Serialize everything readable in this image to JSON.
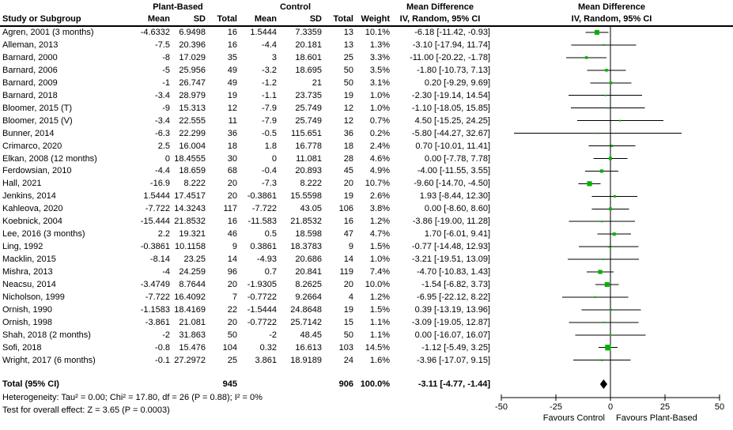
{
  "chart_data": {
    "type": "scatter",
    "subtype": "forest-plot-meta-analysis",
    "header": {
      "study_col": "Study or Subgroup",
      "group1_label": "Plant-Based",
      "group2_label": "Control",
      "columns": [
        "Mean",
        "SD",
        "Total",
        "Mean",
        "SD",
        "Total",
        "Weight"
      ],
      "effect_title": "Mean Difference",
      "effect_subtitle": "IV, Random, 95% CI"
    },
    "studies": [
      {
        "name": "Agren, 2001 (3 months)",
        "mean1": "-4.6332",
        "sd1": "6.9498",
        "n1": "16",
        "mean2": "1.5444",
        "sd2": "7.3359",
        "n2": "13",
        "weight": "10.1%",
        "ci_text": "-6.18 [-11.42, -0.93]",
        "md": -6.18,
        "lo": -11.42,
        "hi": -0.93,
        "w": 10.1
      },
      {
        "name": "Alleman, 2013",
        "mean1": "-7.5",
        "sd1": "20.396",
        "n1": "16",
        "mean2": "-4.4",
        "sd2": "20.181",
        "n2": "13",
        "weight": "1.3%",
        "ci_text": "-3.10 [-17.94, 11.74]",
        "md": -3.1,
        "lo": -17.94,
        "hi": 11.74,
        "w": 1.3
      },
      {
        "name": "Barnard, 2000",
        "mean1": "-8",
        "sd1": "17.029",
        "n1": "35",
        "mean2": "3",
        "sd2": "18.601",
        "n2": "25",
        "weight": "3.3%",
        "ci_text": "-11.00 [-20.22, -1.78]",
        "md": -11.0,
        "lo": -20.22,
        "hi": -1.78,
        "w": 3.3
      },
      {
        "name": "Barnard, 2006",
        "mean1": "-5",
        "sd1": "25.956",
        "n1": "49",
        "mean2": "-3.2",
        "sd2": "18.695",
        "n2": "50",
        "weight": "3.5%",
        "ci_text": "-1.80 [-10.73, 7.13]",
        "md": -1.8,
        "lo": -10.73,
        "hi": 7.13,
        "w": 3.5
      },
      {
        "name": "Barnard, 2009",
        "mean1": "-1",
        "sd1": "26.747",
        "n1": "49",
        "mean2": "-1.2",
        "sd2": "21",
        "n2": "50",
        "weight": "3.1%",
        "ci_text": "0.20 [-9.29, 9.69]",
        "md": 0.2,
        "lo": -9.29,
        "hi": 9.69,
        "w": 3.1
      },
      {
        "name": "Barnard, 2018",
        "mean1": "-3.4",
        "sd1": "28.979",
        "n1": "19",
        "mean2": "-1.1",
        "sd2": "23.735",
        "n2": "19",
        "weight": "1.0%",
        "ci_text": "-2.30 [-19.14, 14.54]",
        "md": -2.3,
        "lo": -19.14,
        "hi": 14.54,
        "w": 1.0
      },
      {
        "name": "Bloomer, 2015 (T)",
        "mean1": "-9",
        "sd1": "15.313",
        "n1": "12",
        "mean2": "-7.9",
        "sd2": "25.749",
        "n2": "12",
        "weight": "1.0%",
        "ci_text": "-1.10 [-18.05, 15.85]",
        "md": -1.1,
        "lo": -18.05,
        "hi": 15.85,
        "w": 1.0
      },
      {
        "name": "Bloomer, 2015 (V)",
        "mean1": "-3.4",
        "sd1": "22.555",
        "n1": "11",
        "mean2": "-7.9",
        "sd2": "25.749",
        "n2": "12",
        "weight": "0.7%",
        "ci_text": "4.50 [-15.25, 24.25]",
        "md": 4.5,
        "lo": -15.25,
        "hi": 24.25,
        "w": 0.7
      },
      {
        "name": "Bunner, 2014",
        "mean1": "-6.3",
        "sd1": "22.299",
        "n1": "36",
        "mean2": "-0.5",
        "sd2": "115.651",
        "n2": "36",
        "weight": "0.2%",
        "ci_text": "-5.80 [-44.27, 32.67]",
        "md": -5.8,
        "lo": -44.27,
        "hi": 32.67,
        "w": 0.2
      },
      {
        "name": "Crimarco, 2020",
        "mean1": "2.5",
        "sd1": "16.004",
        "n1": "18",
        "mean2": "1.8",
        "sd2": "16.778",
        "n2": "18",
        "weight": "2.4%",
        "ci_text": "0.70 [-10.01, 11.41]",
        "md": 0.7,
        "lo": -10.01,
        "hi": 11.41,
        "w": 2.4
      },
      {
        "name": "Elkan, 2008 (12 months)",
        "mean1": "0",
        "sd1": "18.4555",
        "n1": "30",
        "mean2": "0",
        "sd2": "11.081",
        "n2": "28",
        "weight": "4.6%",
        "ci_text": "0.00 [-7.78, 7.78]",
        "md": 0.0,
        "lo": -7.78,
        "hi": 7.78,
        "w": 4.6
      },
      {
        "name": "Ferdowsian, 2010",
        "mean1": "-4.4",
        "sd1": "18.659",
        "n1": "68",
        "mean2": "-0.4",
        "sd2": "20.893",
        "n2": "45",
        "weight": "4.9%",
        "ci_text": "-4.00 [-11.55, 3.55]",
        "md": -4.0,
        "lo": -11.55,
        "hi": 3.55,
        "w": 4.9
      },
      {
        "name": "Hall, 2021",
        "mean1": "-16.9",
        "sd1": "8.222",
        "n1": "20",
        "mean2": "-7.3",
        "sd2": "8.222",
        "n2": "20",
        "weight": "10.7%",
        "ci_text": "-9.60 [-14.70, -4.50]",
        "md": -9.6,
        "lo": -14.7,
        "hi": -4.5,
        "w": 10.7
      },
      {
        "name": "Jenkins, 2014",
        "mean1": "1.5444",
        "sd1": "17.4517",
        "n1": "20",
        "mean2": "-0.3861",
        "sd2": "15.5598",
        "n2": "19",
        "weight": "2.6%",
        "ci_text": "1.93 [-8.44, 12.30]",
        "md": 1.93,
        "lo": -8.44,
        "hi": 12.3,
        "w": 2.6
      },
      {
        "name": "Kahleova, 2020",
        "mean1": "-7.722",
        "sd1": "14.3243",
        "n1": "117",
        "mean2": "-7.722",
        "sd2": "43.05",
        "n2": "106",
        "weight": "3.8%",
        "ci_text": "0.00 [-8.60, 8.60]",
        "md": 0.0,
        "lo": -8.6,
        "hi": 8.6,
        "w": 3.8
      },
      {
        "name": "Koebnick, 2004",
        "mean1": "-15.444",
        "sd1": "21.8532",
        "n1": "16",
        "mean2": "-11.583",
        "sd2": "21.8532",
        "n2": "16",
        "weight": "1.2%",
        "ci_text": "-3.86 [-19.00, 11.28]",
        "md": -3.86,
        "lo": -19.0,
        "hi": 11.28,
        "w": 1.2
      },
      {
        "name": "Lee, 2016 (3 months)",
        "mean1": "2.2",
        "sd1": "19.321",
        "n1": "46",
        "mean2": "0.5",
        "sd2": "18.598",
        "n2": "47",
        "weight": "4.7%",
        "ci_text": "1.70 [-6.01, 9.41]",
        "md": 1.7,
        "lo": -6.01,
        "hi": 9.41,
        "w": 4.7
      },
      {
        "name": "Ling, 1992",
        "mean1": "-0.3861",
        "sd1": "10.1158",
        "n1": "9",
        "mean2": "0.3861",
        "sd2": "18.3783",
        "n2": "9",
        "weight": "1.5%",
        "ci_text": "-0.77 [-14.48, 12.93]",
        "md": -0.77,
        "lo": -14.48,
        "hi": 12.93,
        "w": 1.5
      },
      {
        "name": "Macklin, 2015",
        "mean1": "-8.14",
        "sd1": "23.25",
        "n1": "14",
        "mean2": "-4.93",
        "sd2": "20.686",
        "n2": "14",
        "weight": "1.0%",
        "ci_text": "-3.21 [-19.51, 13.09]",
        "md": -3.21,
        "lo": -19.51,
        "hi": 13.09,
        "w": 1.0
      },
      {
        "name": "Mishra, 2013",
        "mean1": "-4",
        "sd1": "24.259",
        "n1": "96",
        "mean2": "0.7",
        "sd2": "20.841",
        "n2": "119",
        "weight": "7.4%",
        "ci_text": "-4.70 [-10.83, 1.43]",
        "md": -4.7,
        "lo": -10.83,
        "hi": 1.43,
        "w": 7.4
      },
      {
        "name": "Neacsu, 2014",
        "mean1": "-3.4749",
        "sd1": "8.7644",
        "n1": "20",
        "mean2": "-1.9305",
        "sd2": "8.2625",
        "n2": "20",
        "weight": "10.0%",
        "ci_text": "-1.54 [-6.82, 3.73]",
        "md": -1.54,
        "lo": -6.82,
        "hi": 3.73,
        "w": 10.0
      },
      {
        "name": "Nicholson, 1999",
        "mean1": "-7.722",
        "sd1": "16.4092",
        "n1": "7",
        "mean2": "-0.7722",
        "sd2": "9.2664",
        "n2": "4",
        "weight": "1.2%",
        "ci_text": "-6.95 [-22.12, 8.22]",
        "md": -6.95,
        "lo": -22.12,
        "hi": 8.22,
        "w": 1.2
      },
      {
        "name": "Ornish, 1990",
        "mean1": "-1.1583",
        "sd1": "18.4169",
        "n1": "22",
        "mean2": "-1.5444",
        "sd2": "24.8648",
        "n2": "19",
        "weight": "1.5%",
        "ci_text": "0.39 [-13.19, 13.96]",
        "md": 0.39,
        "lo": -13.19,
        "hi": 13.96,
        "w": 1.5
      },
      {
        "name": "Ornish, 1998",
        "mean1": "-3.861",
        "sd1": "21.081",
        "n1": "20",
        "mean2": "-0.7722",
        "sd2": "25.7142",
        "n2": "15",
        "weight": "1.1%",
        "ci_text": "-3.09 [-19.05, 12.87]",
        "md": -3.09,
        "lo": -19.05,
        "hi": 12.87,
        "w": 1.1
      },
      {
        "name": "Shah, 2018 (2 months)",
        "mean1": "-2",
        "sd1": "31.863",
        "n1": "50",
        "mean2": "-2",
        "sd2": "48.45",
        "n2": "50",
        "weight": "1.1%",
        "ci_text": "0.00 [-16.07, 16.07]",
        "md": 0.0,
        "lo": -16.07,
        "hi": 16.07,
        "w": 1.1
      },
      {
        "name": "Sofi, 2018",
        "mean1": "-0.8",
        "sd1": "15.476",
        "n1": "104",
        "mean2": "0.32",
        "sd2": "16.613",
        "n2": "103",
        "weight": "14.5%",
        "ci_text": "-1.12 [-5.49, 3.25]",
        "md": -1.12,
        "lo": -5.49,
        "hi": 3.25,
        "w": 14.5
      },
      {
        "name": "Wright, 2017 (6 months)",
        "mean1": "-0.1",
        "sd1": "27.2972",
        "n1": "25",
        "mean2": "3.861",
        "sd2": "18.9189",
        "n2": "24",
        "weight": "1.6%",
        "ci_text": "-3.96 [-17.07, 9.15]",
        "md": -3.96,
        "lo": -17.07,
        "hi": 9.15,
        "w": 1.6
      }
    ],
    "total": {
      "label": "Total (95% CI)",
      "n1": "945",
      "n2": "906",
      "weight": "100.0%",
      "ci_text": "-3.11 [-4.77, -1.44]",
      "md": -3.11,
      "lo": -4.77,
      "hi": -1.44
    },
    "footer": {
      "heterogeneity": "Heterogeneity: Tau² = 0.00; Chi² = 17.80, df = 26 (P = 0.88); I² = 0%",
      "overall_effect": "Test for overall effect: Z = 3.65 (P = 0.0003)"
    },
    "axis": {
      "xlim": [
        -50,
        50
      ],
      "ticks": [
        "-50",
        "-25",
        "0",
        "25",
        "50"
      ],
      "tick_values": [
        -50,
        -25,
        0,
        25,
        50
      ],
      "left_label": "Favours Control",
      "right_label": "Favours Plant-Based"
    },
    "colors": {
      "marker": "#00b300",
      "diamond": "#000000",
      "line": "#000000"
    }
  }
}
